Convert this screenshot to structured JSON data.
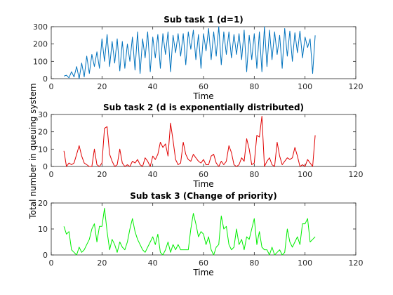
{
  "figure": {
    "shared_ylabel": "Total number in queuing system"
  },
  "chart_data": [
    {
      "type": "line",
      "title": "Sub task 1 (d=1)",
      "xlabel": "Time",
      "ylabel": "",
      "xlim": [
        0,
        120
      ],
      "ylim": [
        0,
        300
      ],
      "xticks": [
        0,
        20,
        40,
        60,
        80,
        100,
        120
      ],
      "yticks": [
        0,
        100,
        200,
        300
      ],
      "color": "#0072BD",
      "series": [
        {
          "x": [
            5,
            6,
            7,
            8,
            9,
            10,
            11,
            12,
            13,
            14,
            15,
            16,
            17,
            18,
            19,
            20,
            21,
            22,
            23,
            24,
            25,
            26,
            27,
            28,
            29,
            30,
            31,
            32,
            33,
            34,
            35,
            36,
            37,
            38,
            39,
            40,
            41,
            42,
            43,
            44,
            45,
            46,
            47,
            48,
            49,
            50,
            51,
            52,
            53,
            54,
            55,
            56,
            57,
            58,
            59,
            60,
            61,
            62,
            63,
            64,
            65,
            66,
            67,
            68,
            69,
            70,
            71,
            72,
            73,
            74,
            75,
            76,
            77,
            78,
            79,
            80,
            81,
            82,
            83,
            84,
            85,
            86,
            87,
            88,
            89,
            90,
            91,
            92,
            93,
            94,
            95,
            96,
            97,
            98,
            99,
            100,
            101,
            102,
            103,
            104
          ],
          "values": [
            15,
            20,
            5,
            40,
            10,
            70,
            0,
            90,
            10,
            130,
            30,
            140,
            70,
            155,
            60,
            230,
            100,
            255,
            70,
            215,
            90,
            230,
            45,
            215,
            60,
            200,
            100,
            240,
            50,
            270,
            30,
            230,
            120,
            270,
            40,
            240,
            120,
            255,
            60,
            260,
            140,
            270,
            40,
            250,
            150,
            260,
            130,
            260,
            80,
            270,
            170,
            280,
            110,
            255,
            60,
            260,
            160,
            290,
            110,
            270,
            130,
            300,
            80,
            270,
            140,
            270,
            120,
            255,
            140,
            260,
            110,
            280,
            40,
            250,
            110,
            260,
            60,
            270,
            40,
            300,
            70,
            280,
            110,
            270,
            140,
            250,
            60,
            290,
            130,
            275,
            100,
            265,
            150,
            275,
            120,
            240,
            180,
            230,
            30,
            250
          ]
        }
      ]
    },
    {
      "type": "line",
      "title": "Sub task 2 (d is exponentially distributed)",
      "xlabel": "Time",
      "ylabel": "",
      "xlim": [
        0,
        120
      ],
      "ylim": [
        0,
        30
      ],
      "xticks": [
        0,
        20,
        40,
        60,
        80,
        100,
        120
      ],
      "yticks": [
        0,
        10,
        20,
        30
      ],
      "color": "#E00000",
      "series": [
        {
          "x": [
            5,
            6,
            7,
            8,
            9,
            10,
            11,
            12,
            13,
            14,
            15,
            16,
            17,
            18,
            19,
            20,
            21,
            22,
            23,
            24,
            25,
            26,
            27,
            28,
            29,
            30,
            31,
            32,
            33,
            34,
            35,
            36,
            37,
            38,
            39,
            40,
            41,
            42,
            43,
            44,
            45,
            46,
            47,
            48,
            49,
            50,
            51,
            52,
            53,
            54,
            55,
            56,
            57,
            58,
            59,
            60,
            61,
            62,
            63,
            64,
            65,
            66,
            67,
            68,
            69,
            70,
            71,
            72,
            73,
            74,
            75,
            76,
            77,
            78,
            79,
            80,
            81,
            82,
            83,
            84,
            85,
            86,
            87,
            88,
            89,
            90,
            91,
            92,
            93,
            94,
            95,
            96,
            97,
            98,
            99,
            100,
            101,
            102,
            103,
            104
          ],
          "values": [
            9,
            0,
            2,
            1,
            2,
            7,
            12,
            6,
            2,
            1,
            0,
            0,
            10,
            1,
            0,
            2,
            22,
            23,
            7,
            3,
            0,
            1,
            10,
            2,
            0,
            1,
            0,
            3,
            2,
            4,
            1,
            0,
            5,
            3,
            0,
            6,
            4,
            7,
            14,
            11,
            13,
            6,
            25,
            15,
            4,
            1,
            2,
            14,
            7,
            4,
            3,
            7,
            5,
            3,
            2,
            4,
            1,
            1,
            6,
            7,
            2,
            0,
            3,
            1,
            3,
            12,
            8,
            1,
            0,
            1,
            5,
            3,
            16,
            10,
            1,
            2,
            18,
            17,
            29,
            0,
            3,
            5,
            1,
            0,
            14,
            6,
            1,
            3,
            5,
            4,
            5,
            11,
            6,
            0,
            1,
            0,
            4,
            2,
            0,
            18
          ]
        }
      ]
    },
    {
      "type": "line",
      "title": "Sub task 3 (Change of priority)",
      "xlabel": "Time",
      "ylabel": "",
      "xlim": [
        0,
        120
      ],
      "ylim": [
        0,
        20
      ],
      "xticks": [
        0,
        20,
        40,
        60,
        80,
        100,
        120
      ],
      "yticks": [
        0,
        10,
        20
      ],
      "color": "#00EE00",
      "series": [
        {
          "x": [
            5,
            6,
            7,
            8,
            9,
            10,
            11,
            12,
            13,
            14,
            15,
            16,
            17,
            18,
            19,
            20,
            21,
            22,
            23,
            24,
            25,
            26,
            27,
            28,
            29,
            30,
            31,
            32,
            33,
            34,
            35,
            36,
            37,
            38,
            39,
            40,
            41,
            42,
            43,
            44,
            45,
            46,
            47,
            48,
            49,
            50,
            51,
            52,
            53,
            54,
            55,
            56,
            57,
            58,
            59,
            60,
            61,
            62,
            63,
            64,
            65,
            66,
            67,
            68,
            69,
            70,
            71,
            72,
            73,
            74,
            75,
            76,
            77,
            78,
            79,
            80,
            81,
            82,
            83,
            84,
            85,
            86,
            87,
            88,
            89,
            90,
            91,
            92,
            93,
            94,
            95,
            96,
            97,
            98,
            99,
            100,
            101,
            102,
            103,
            104
          ],
          "values": [
            11,
            8,
            9,
            2,
            1,
            0,
            3,
            1,
            2,
            4,
            6,
            10,
            12,
            5,
            11,
            11,
            18,
            9,
            2,
            6,
            4,
            1,
            5,
            3,
            2,
            5,
            10,
            14,
            9,
            6,
            4,
            2,
            1,
            3,
            5,
            7,
            4,
            8,
            1,
            0,
            2,
            5,
            1,
            4,
            2,
            4,
            2,
            2,
            2,
            2,
            10,
            16,
            12,
            7,
            9,
            8,
            4,
            7,
            2,
            0,
            3,
            4,
            15,
            10,
            11,
            4,
            2,
            3,
            10,
            4,
            6,
            2,
            7,
            6,
            10,
            14,
            4,
            9,
            3,
            2,
            2,
            0,
            3,
            0,
            1,
            2,
            0,
            1,
            10,
            5,
            3,
            5,
            7,
            4,
            12,
            12,
            14,
            5,
            6,
            7
          ]
        }
      ]
    }
  ]
}
